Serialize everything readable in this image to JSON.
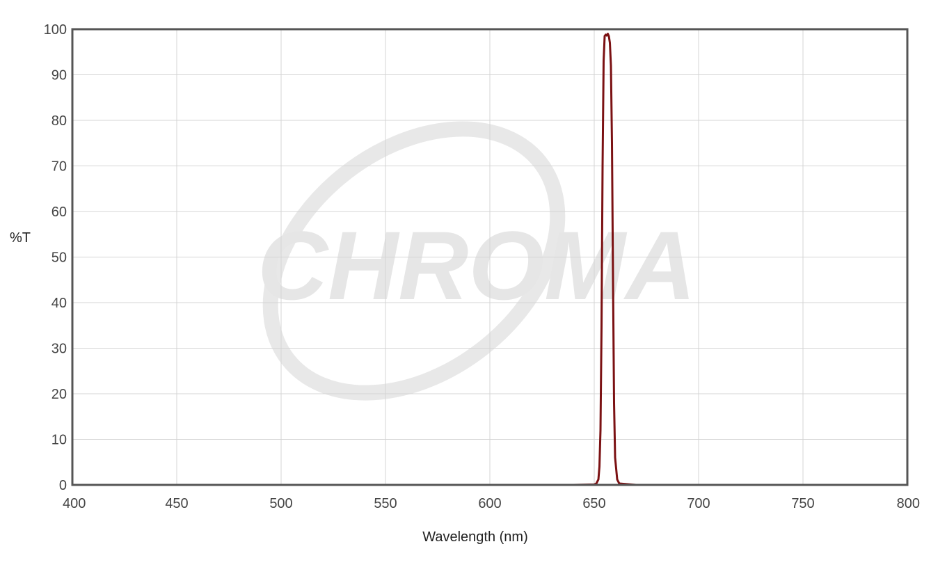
{
  "watermark": {
    "text": "CHROMA"
  },
  "colors": {
    "series": "#7b1113",
    "frame": "#555555",
    "grid": "#d4d4d4",
    "watermark": "#e6e6e6"
  },
  "chart_data": {
    "type": "line",
    "title": "",
    "xlabel": "Wavelength (nm)",
    "ylabel": "%T",
    "xlim": [
      400,
      800
    ],
    "ylim": [
      0,
      100
    ],
    "xticks": [
      400,
      450,
      500,
      550,
      600,
      650,
      700,
      750,
      800
    ],
    "yticks": [
      0,
      10,
      20,
      30,
      40,
      50,
      60,
      70,
      80,
      90,
      100
    ],
    "grid": true,
    "legend": "none",
    "series": [
      {
        "color": "#7b1113",
        "x": [
          400,
          600,
          640,
          650,
          651,
          652,
          652.5,
          653,
          653.5,
          654,
          654.5,
          655,
          655.5,
          656,
          656.5,
          657,
          657.5,
          658,
          658.5,
          659,
          659.5,
          660,
          661,
          662,
          670,
          700,
          800
        ],
        "y": [
          0,
          0,
          0,
          0.1,
          0.3,
          1.2,
          4,
          12,
          35,
          70,
          93,
          98.5,
          98.8,
          98.6,
          99,
          98.5,
          97,
          92,
          75,
          45,
          18,
          6,
          1.2,
          0.3,
          0,
          0,
          0
        ]
      }
    ]
  }
}
